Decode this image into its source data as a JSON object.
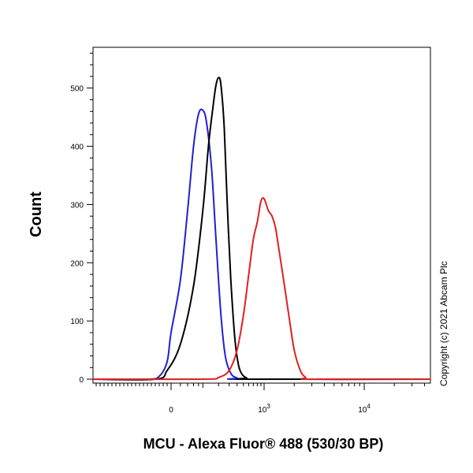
{
  "chart_data": {
    "type": "line",
    "xlabel": "MCU - Alexa Fluor® 488 (530/30 BP)",
    "ylabel": "Count",
    "x_scale": "biexponential",
    "x_ticks": [
      {
        "value": 0,
        "base": "0",
        "exp": ""
      },
      {
        "value": 1000,
        "base": "10",
        "exp": "3"
      },
      {
        "value": 10000,
        "base": "10",
        "exp": "4"
      }
    ],
    "y_ticks": [
      0,
      100,
      200,
      300,
      400,
      500
    ],
    "ylim": [
      0,
      570
    ],
    "grid": false,
    "legend": "none",
    "annotation": "Copyright (c) 2021 Abcam Plc",
    "series": [
      {
        "color": "#2020d0",
        "x": [
          -120,
          -60,
          -20,
          0,
          20,
          40,
          60,
          80,
          100,
          120,
          150,
          180,
          220,
          260,
          320,
          400,
          500
        ],
        "y": [
          0,
          5,
          30,
          80,
          170,
          290,
          400,
          455,
          462,
          440,
          360,
          240,
          110,
          40,
          10,
          2,
          0
        ]
      },
      {
        "color": "#000000",
        "x": [
          -80,
          -20,
          20,
          60,
          100,
          130,
          160,
          180,
          200,
          220,
          250,
          280,
          320,
          370,
          420,
          480,
          560,
          650
        ],
        "y": [
          0,
          15,
          60,
          160,
          290,
          400,
          470,
          505,
          518,
          505,
          430,
          300,
          170,
          70,
          25,
          8,
          2,
          0
        ]
      },
      {
        "color": "#e02020",
        "x": [
          100,
          200,
          300,
          400,
          500,
          600,
          700,
          800,
          900,
          1000,
          1100,
          1200,
          1300,
          1400,
          1600,
          1800,
          2000,
          2300,
          2600,
          3000
        ],
        "y": [
          0,
          3,
          15,
          50,
          110,
          180,
          240,
          270,
          305,
          310,
          290,
          280,
          260,
          225,
          160,
          100,
          50,
          15,
          3,
          0
        ]
      }
    ]
  }
}
